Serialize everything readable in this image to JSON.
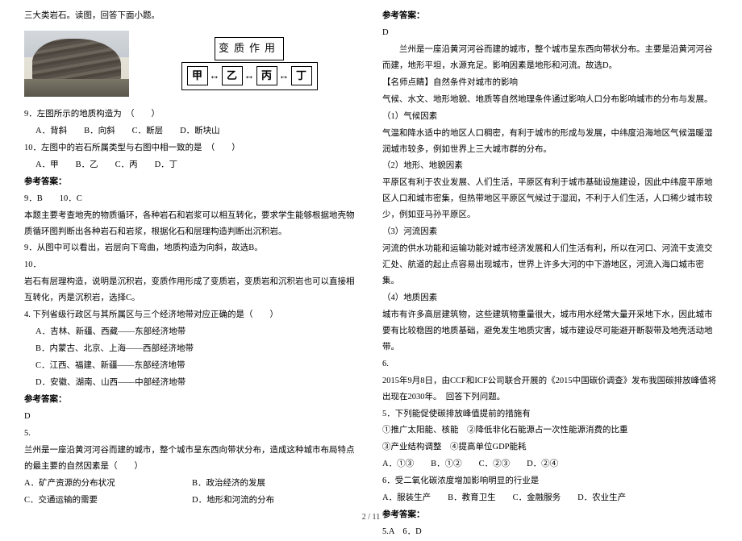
{
  "left": {
    "intro": "三大类岩石。读图，回答下面小题。",
    "diagram_label": "变质作用",
    "box1": "甲",
    "box2": "乙",
    "box3": "丙",
    "box4": "丁",
    "q9": "9．左图所示的地质构造为　（　　）",
    "q9opts": "A．背斜　　B．向斜　　C．断层　　D．断块山",
    "q10": "10．左图中的岩石所属类型与右图中相一致的是　（　　）",
    "q10opts": "A．甲　　B．乙　　C．丙　　D．丁",
    "anshdr": "参考答案：",
    "ans910": "9．B　　10．C",
    "exp1": "本题主要考查地壳的物质循环，各种岩石和岩浆可以相互转化，要求学生能够根据地壳物质循环图判断出各种岩石和岩浆，根据化石和层理构造判断出沉积岩。",
    "exp9": "9．从图中可以看出，岩层向下弯曲，地质构造为向斜，故选B。",
    "n10": "10．",
    "exp10": "岩石有层理构造，说明是沉积岩，变质作用形成了变质岩，变质岩和沉积岩也可以直接相互转化，丙是沉积岩，选择C。",
    "q4": "4. 下列省级行政区与其所属区与三个经济地带对应正确的是（　　）",
    "q4a": "A．吉林、新疆、西藏——东部经济地带",
    "q4b": "B．内蒙古、北京、上海——西部经济地带",
    "q4c": "C．江西、福建、新疆——东部经济地带",
    "q4d": "D．安徽、湖南、山西——中部经济地带",
    "ans4hdr": "参考答案：",
    "ans4": "D",
    "n5": "5.",
    "q5": "兰州是一座沿黄河河谷而建的城市，整个城市呈东西向带状分布，造成这种城市布局特点的最主要的自然因素是（　　）",
    "q5a": "A．矿产资源的分布状况",
    "q5b": "B．政治经济的发展",
    "q5c": "C．交通运输的需要",
    "q5d": "D．地形和河流的分布"
  },
  "right": {
    "anshdr": "参考答案：",
    "ans5": "D",
    "exp5a": "　　兰州是一座沿黄河河谷而建的城市，整个城市呈东西向带状分布。主要是沿黄河河谷而建，地形平坦，水源充足。影响因素是地形和河流。故选D。",
    "tiphdr": "【名师点睛】自然条件对城市的影响",
    "tip0": "气候、水文、地形地貌、地质等自然地理条件通过影响人口分布影响城市的分布与发展。",
    "c1h": "（1）气候因素",
    "c1": "气温和降水适中的地区人口稠密，有利于城市的形成与发展，中纬度沿海地区气候温暖湿润城市较多，例如世界上三大城市群的分布。",
    "c2h": "（2）地形、地貌因素",
    "c2": "平原区有利于农业发展、人们生活，平原区有利于城市基础设施建设，因此中纬度平原地区人口和城市密集，但热带地区平原区气候过于湿润，不利于人们生活，人口稀少城市较少，例如亚马孙平原区。",
    "c3h": "（3）河流因素",
    "c3": "河流的供水功能和运输功能对城市经济发展和人们生活有利，所以在河口、河流干支流交汇处、航道的起止点容易出现城市，世界上许多大河的中下游地区，河流入海口城市密集。",
    "c4h": "（4）地质因素",
    "c4": "城市有许多高层建筑物，这些建筑物重量很大，城市用水经常大量开采地下水，因此城市要有比较稳固的地质基础，避免发生地质灾害，城市建设尽可能避开断裂带及地壳活动地带。",
    "n6": "6.",
    "q6intro": "2015年9月8日，由CCF和ICF公司联合开展的《2015中国碳价调查》发布我国碳排放峰值将出现在2030年。　回答下列问题。",
    "q6_5": "5．下列能促使碳排放峰值提前的措施有",
    "m1": "①推广太阳能、核能　②降低非化石能源占一次性能源消费的比重",
    "m2": "③产业结构调整　④提高单位GDP能耗",
    "q6_5opts": "A．①③　　B．①②　　C．②③　　D．②④",
    "q6_6": "6．受二氧化碳浓度增加影响明显的行业是",
    "q6_6opts": "A．服装生产　　B．教育卫生　　C．金融服务　　D．农业生产",
    "ans6hdr": "参考答案：",
    "ans6": "5.A　6．D"
  },
  "footer": "2 / 11"
}
